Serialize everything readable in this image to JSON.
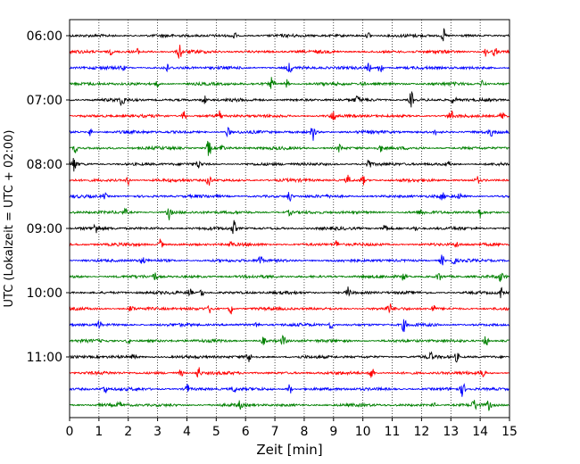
{
  "chart_data": {
    "type": "line",
    "title": "",
    "xlabel": "Zeit  [min]",
    "ylabel": "UTC (Lokalzeit = UTC + 02:00)",
    "xlim": [
      0,
      15
    ],
    "x_ticks": [
      "0",
      "1",
      "2",
      "3",
      "4",
      "5",
      "6",
      "7",
      "8",
      "9",
      "10",
      "11",
      "12",
      "13",
      "14",
      "15"
    ],
    "y_ticks": [
      {
        "label": "06:00",
        "row": 0
      },
      {
        "label": "07:00",
        "row": 4
      },
      {
        "label": "08:00",
        "row": 8
      },
      {
        "label": "09:00",
        "row": 12
      },
      {
        "label": "10:00",
        "row": 16
      },
      {
        "label": "11:00",
        "row": 20
      }
    ],
    "grid": "vertical dotted at each minute",
    "row_colors": [
      "#000000",
      "#ff0000",
      "#0000ff",
      "#008000"
    ],
    "rows": [
      {
        "time": "06:00",
        "color": "#000000",
        "spikes": [
          [
            5.6,
            5
          ],
          [
            10.2,
            4
          ],
          [
            12.75,
            7
          ]
        ]
      },
      {
        "time": "06:15",
        "color": "#ff0000",
        "spikes": [
          [
            1.4,
            3
          ],
          [
            2.3,
            3
          ],
          [
            3.75,
            9
          ],
          [
            14.2,
            5
          ],
          [
            14.5,
            5
          ]
        ]
      },
      {
        "time": "06:30",
        "color": "#0000ff",
        "spikes": [
          [
            1.8,
            3
          ],
          [
            3.3,
            5
          ],
          [
            7.5,
            7
          ],
          [
            10.2,
            5
          ],
          [
            10.6,
            9
          ]
        ]
      },
      {
        "time": "06:45",
        "color": "#008000",
        "spikes": [
          [
            3.0,
            3
          ],
          [
            6.9,
            7
          ],
          [
            7.4,
            5
          ],
          [
            10.0,
            3
          ],
          [
            14.1,
            5
          ]
        ]
      },
      {
        "time": "07:00",
        "color": "#000000",
        "spikes": [
          [
            1.8,
            7
          ],
          [
            4.6,
            5
          ],
          [
            9.8,
            4
          ],
          [
            11.65,
            9
          ],
          [
            13.1,
            5
          ]
        ]
      },
      {
        "time": "07:15",
        "color": "#ff0000",
        "spikes": [
          [
            3.9,
            6
          ],
          [
            5.1,
            6
          ],
          [
            9.0,
            6
          ],
          [
            13.0,
            6
          ],
          [
            14.75,
            5
          ]
        ]
      },
      {
        "time": "07:30",
        "color": "#0000ff",
        "spikes": [
          [
            0.7,
            4
          ],
          [
            5.4,
            5
          ],
          [
            8.3,
            9
          ],
          [
            12.5,
            3
          ],
          [
            14.4,
            4
          ]
        ]
      },
      {
        "time": "07:45",
        "color": "#008000",
        "spikes": [
          [
            0.2,
            5
          ],
          [
            4.75,
            10
          ],
          [
            5.2,
            4
          ],
          [
            9.2,
            4
          ],
          [
            10.6,
            4
          ]
        ]
      },
      {
        "time": "08:00",
        "color": "#000000",
        "spikes": [
          [
            0.15,
            8
          ],
          [
            4.4,
            4
          ],
          [
            10.2,
            6
          ],
          [
            12.9,
            4
          ]
        ]
      },
      {
        "time": "08:15",
        "color": "#ff0000",
        "spikes": [
          [
            2.0,
            5
          ],
          [
            4.75,
            8
          ],
          [
            9.5,
            5
          ],
          [
            10.0,
            5
          ],
          [
            13.9,
            4
          ]
        ]
      },
      {
        "time": "08:30",
        "color": "#0000ff",
        "spikes": [
          [
            1.2,
            3
          ],
          [
            7.5,
            6
          ],
          [
            12.7,
            4
          ],
          [
            13.3,
            3
          ]
        ]
      },
      {
        "time": "08:45",
        "color": "#008000",
        "spikes": [
          [
            1.9,
            3
          ],
          [
            3.4,
            8
          ],
          [
            7.5,
            3
          ],
          [
            12.0,
            3
          ],
          [
            14.0,
            5
          ]
        ]
      },
      {
        "time": "09:00",
        "color": "#000000",
        "spikes": [
          [
            0.9,
            6
          ],
          [
            5.6,
            8
          ],
          [
            10.75,
            6
          ],
          [
            11.8,
            3
          ]
        ]
      },
      {
        "time": "09:15",
        "color": "#ff0000",
        "spikes": [
          [
            3.1,
            6
          ],
          [
            5.5,
            3
          ],
          [
            9.1,
            4
          ],
          [
            13.2,
            3
          ]
        ]
      },
      {
        "time": "09:30",
        "color": "#0000ff",
        "spikes": [
          [
            2.5,
            4
          ],
          [
            6.5,
            7
          ],
          [
            12.7,
            6
          ],
          [
            13.1,
            4
          ]
        ]
      },
      {
        "time": "09:45",
        "color": "#008000",
        "spikes": [
          [
            2.9,
            5
          ],
          [
            11.4,
            5
          ],
          [
            12.6,
            5
          ],
          [
            14.7,
            5
          ]
        ]
      },
      {
        "time": "10:00",
        "color": "#000000",
        "spikes": [
          [
            4.1,
            5
          ],
          [
            4.5,
            5
          ],
          [
            9.5,
            6
          ],
          [
            14.7,
            6
          ]
        ]
      },
      {
        "time": "10:15",
        "color": "#ff0000",
        "spikes": [
          [
            2.1,
            4
          ],
          [
            4.8,
            5
          ],
          [
            5.5,
            6
          ],
          [
            10.9,
            5
          ],
          [
            12.4,
            4
          ]
        ]
      },
      {
        "time": "10:30",
        "color": "#0000ff",
        "spikes": [
          [
            1.0,
            5
          ],
          [
            6.4,
            5
          ],
          [
            8.9,
            5
          ],
          [
            11.4,
            7
          ]
        ]
      },
      {
        "time": "10:45",
        "color": "#008000",
        "spikes": [
          [
            2.0,
            4
          ],
          [
            6.6,
            4
          ],
          [
            7.3,
            6
          ],
          [
            14.2,
            7
          ]
        ]
      },
      {
        "time": "11:00",
        "color": "#000000",
        "spikes": [
          [
            2.2,
            3
          ],
          [
            6.1,
            6
          ],
          [
            12.3,
            5
          ],
          [
            13.2,
            5
          ]
        ]
      },
      {
        "time": "11:15",
        "color": "#ff0000",
        "spikes": [
          [
            3.8,
            4
          ],
          [
            4.4,
            7
          ],
          [
            10.3,
            9
          ],
          [
            14.1,
            6
          ]
        ]
      },
      {
        "time": "11:30",
        "color": "#0000ff",
        "spikes": [
          [
            1.2,
            5
          ],
          [
            4.0,
            6
          ],
          [
            5.6,
            4
          ],
          [
            7.5,
            6
          ],
          [
            13.4,
            8
          ]
        ]
      },
      {
        "time": "11:45",
        "color": "#008000",
        "spikes": [
          [
            1.7,
            3
          ],
          [
            5.8,
            4
          ],
          [
            12.4,
            3
          ],
          [
            13.8,
            6
          ],
          [
            14.3,
            5
          ]
        ]
      }
    ]
  }
}
